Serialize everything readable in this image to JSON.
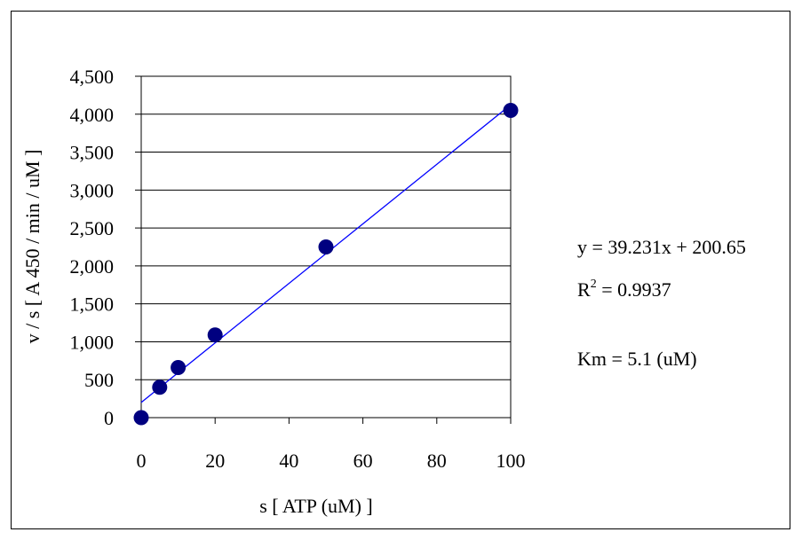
{
  "chart_data": {
    "type": "scatter",
    "xlabel": "s [ ATP (uM) ]",
    "ylabel": "v / s [ A 450 / min / uM ]",
    "xlim": [
      0,
      100
    ],
    "ylim": [
      0,
      4500
    ],
    "x_ticks": [
      0,
      20,
      40,
      60,
      80,
      100
    ],
    "x_tick_labels": [
      "0",
      "20",
      "40",
      "60",
      "80",
      "100"
    ],
    "y_ticks": [
      0,
      500,
      1000,
      1500,
      2000,
      2500,
      3000,
      3500,
      4000,
      4500
    ],
    "y_tick_labels": [
      "0",
      "500",
      "1,000",
      "1,500",
      "2,000",
      "2,500",
      "3,000",
      "3,500",
      "4,000",
      "4,500"
    ],
    "grid": "horizontal",
    "series": [
      {
        "marker_color": "#000080",
        "x": [
          0,
          5,
          10,
          20,
          50,
          100
        ],
        "y": [
          0,
          400,
          660,
          1090,
          2250,
          4050
        ]
      }
    ],
    "trendline": {
      "slope": 39.231,
      "intercept": 200.65,
      "color": "#0000ff"
    },
    "annotations": {
      "equation": "y = 39.231x + 200.65",
      "r2_prefix": "R",
      "r2_sup": "2",
      "r2_value": " = 0.9937",
      "km": "Km = 5.1 (uM)"
    }
  }
}
